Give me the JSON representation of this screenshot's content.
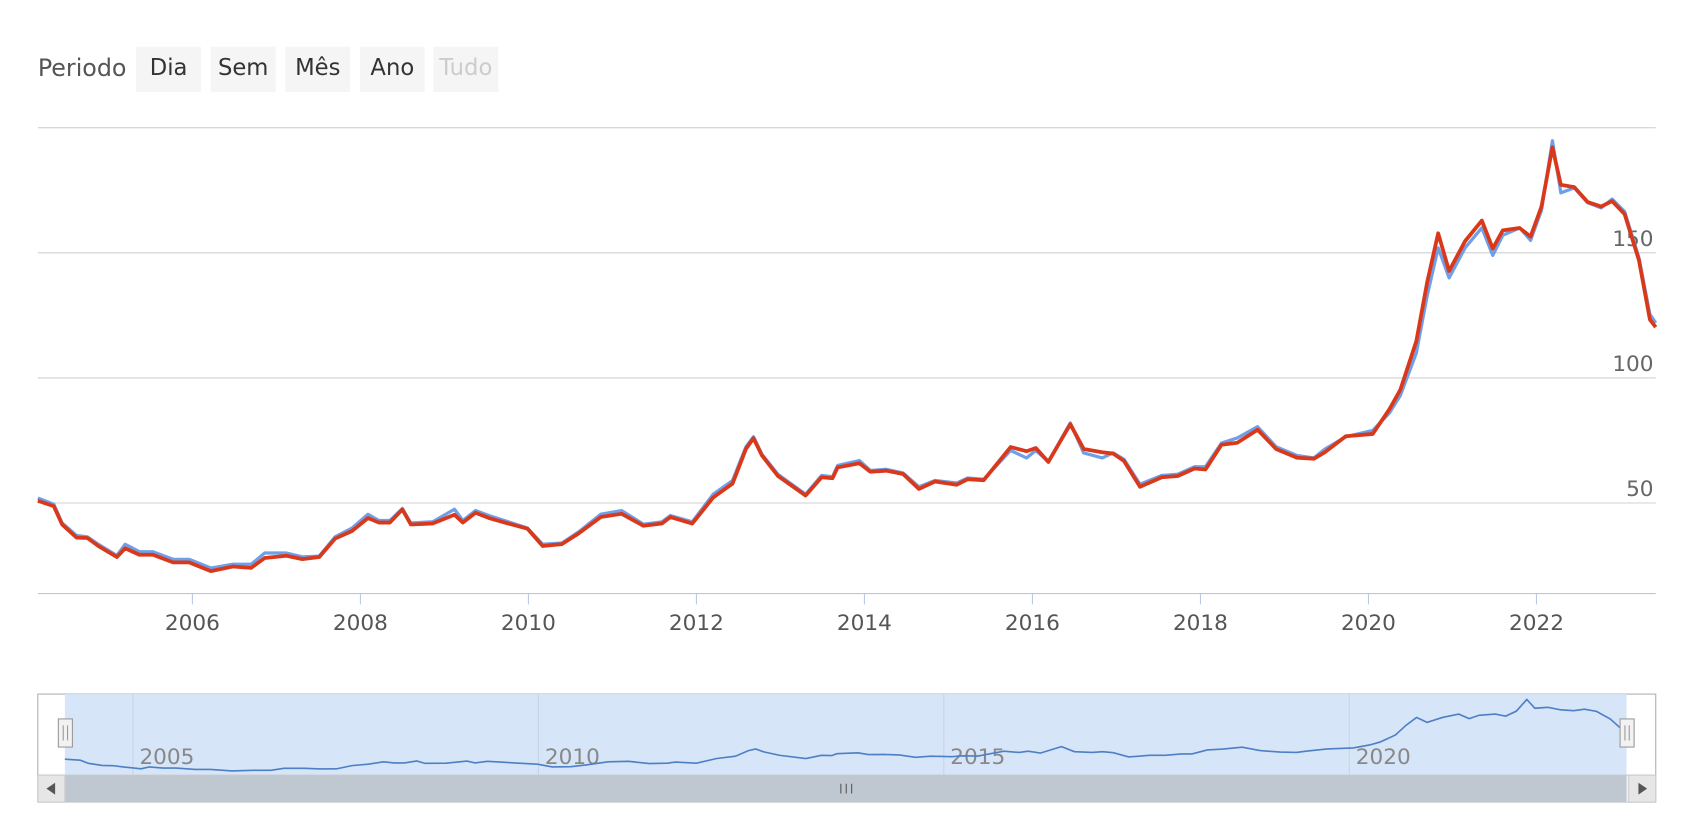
{
  "range_selector": {
    "label": "Periodo",
    "buttons": [
      {
        "text": "Dia",
        "enabled": true
      },
      {
        "text": "Sem",
        "enabled": true
      },
      {
        "text": "Mês",
        "enabled": true
      },
      {
        "text": "Ano",
        "enabled": true
      },
      {
        "text": "Tudo",
        "enabled": false
      }
    ]
  },
  "chart_data": {
    "type": "line",
    "x": [
      2004.16,
      2004.35,
      2004.45,
      2004.62,
      2004.75,
      2004.88,
      2005.1,
      2005.2,
      2005.37,
      2005.53,
      2005.77,
      2005.96,
      2006.22,
      2006.48,
      2006.7,
      2006.86,
      2007.12,
      2007.31,
      2007.51,
      2007.7,
      2007.9,
      2008.09,
      2008.22,
      2008.35,
      2008.5,
      2008.6,
      2008.86,
      2009.12,
      2009.22,
      2009.37,
      2009.53,
      2009.76,
      2009.99,
      2010.17,
      2010.4,
      2010.6,
      2010.86,
      2011.11,
      2011.37,
      2011.59,
      2011.69,
      2011.95,
      2012.2,
      2012.43,
      2012.59,
      2012.68,
      2012.78,
      2012.97,
      2013.3,
      2013.49,
      2013.62,
      2013.68,
      2013.94,
      2014.07,
      2014.26,
      2014.46,
      2014.65,
      2014.84,
      2015.1,
      2015.23,
      2015.42,
      2015.74,
      2015.93,
      2016.04,
      2016.19,
      2016.45,
      2016.61,
      2016.83,
      2016.96,
      2017.09,
      2017.28,
      2017.54,
      2017.73,
      2017.93,
      2018.06,
      2018.25,
      2018.44,
      2018.68,
      2018.9,
      2019.15,
      2019.35,
      2019.48,
      2019.73,
      2020.05,
      2020.25,
      2020.38,
      2020.57,
      2020.7,
      2020.83,
      2020.96,
      2021.15,
      2021.35,
      2021.48,
      2021.6,
      2021.8,
      2021.93,
      2022.06,
      2022.19,
      2022.29,
      2022.45,
      2022.61,
      2022.77,
      2022.9,
      2023.05,
      2023.22,
      2023.35,
      2023.42
    ],
    "series": [
      {
        "color": "#6f9fe8",
        "values": [
          52,
          49.5,
          42,
          37,
          36.5,
          33.5,
          29,
          33.5,
          30.5,
          30.5,
          27.5,
          27.5,
          24,
          25.5,
          25.5,
          30,
          30,
          28.5,
          28.8,
          36.5,
          40,
          45.5,
          43,
          43,
          47.8,
          42,
          42.5,
          47.5,
          43,
          47,
          45,
          42.5,
          40,
          33.5,
          34,
          38.5,
          45.5,
          47,
          41.5,
          42.5,
          45,
          42.5,
          53.5,
          59,
          72.5,
          76.5,
          69.5,
          61.5,
          53.5,
          61,
          60.5,
          65,
          67,
          63,
          63.5,
          62,
          56.5,
          59,
          58,
          60,
          59.5,
          71,
          68,
          71,
          66.5,
          82,
          70,
          68,
          70,
          67.5,
          57.5,
          61,
          61.5,
          64.5,
          64.5,
          74,
          76,
          80.5,
          72.5,
          69,
          68,
          71.5,
          76.5,
          79,
          86,
          93,
          110,
          133,
          152,
          140,
          152,
          160,
          149,
          157,
          160,
          155,
          167,
          194.8,
          174,
          176,
          170,
          168,
          171.5,
          166.5,
          148,
          125.4,
          122
        ]
      },
      {
        "color": "#d9391a",
        "values": [
          50.9,
          48.7,
          41.4,
          36.2,
          36,
          32.8,
          28.4,
          31.9,
          29.3,
          29.3,
          26.3,
          26.3,
          22.8,
          24.6,
          24.1,
          28,
          28.9,
          27.6,
          28.4,
          35.8,
          38.8,
          44,
          42.2,
          42.2,
          47.4,
          41.4,
          41.8,
          45.3,
          42.2,
          46.1,
          44,
          41.8,
          39.7,
          32.8,
          33.6,
          37.9,
          44.4,
          45.7,
          40.9,
          41.8,
          44.4,
          41.8,
          52.2,
          57.8,
          71.6,
          75.9,
          69,
          60.8,
          53,
          60.3,
          59.9,
          64.2,
          65.9,
          62.5,
          62.9,
          61.6,
          55.6,
          58.6,
          57.3,
          59.5,
          59.1,
          72.4,
          70.7,
          72,
          66.4,
          81.5,
          71.6,
          70.3,
          69.8,
          66.8,
          56.5,
          60.3,
          60.8,
          63.8,
          63.4,
          73.3,
          74.1,
          79.3,
          71.6,
          68.1,
          67.7,
          70.3,
          76.7,
          77.6,
          87.5,
          95.3,
          114.7,
          138.4,
          157.8,
          142.7,
          154.7,
          162.9,
          151.7,
          159,
          159.9,
          156.5,
          168.5,
          192.2,
          177.2,
          176.3,
          170.3,
          168.5,
          170.7,
          165.5,
          147,
          123.3,
          120.3
        ]
      }
    ],
    "xlim": [
      2004.16,
      2023.42
    ],
    "xticks": [
      2006,
      2008,
      2010,
      2012,
      2014,
      2016,
      2018,
      2020,
      2022
    ],
    "ylim": [
      13.8,
      200
    ],
    "yticks": [
      50,
      100,
      150
    ],
    "grid": true,
    "navigator": {
      "xticks": [
        2005,
        2010,
        2015,
        2020
      ]
    }
  }
}
